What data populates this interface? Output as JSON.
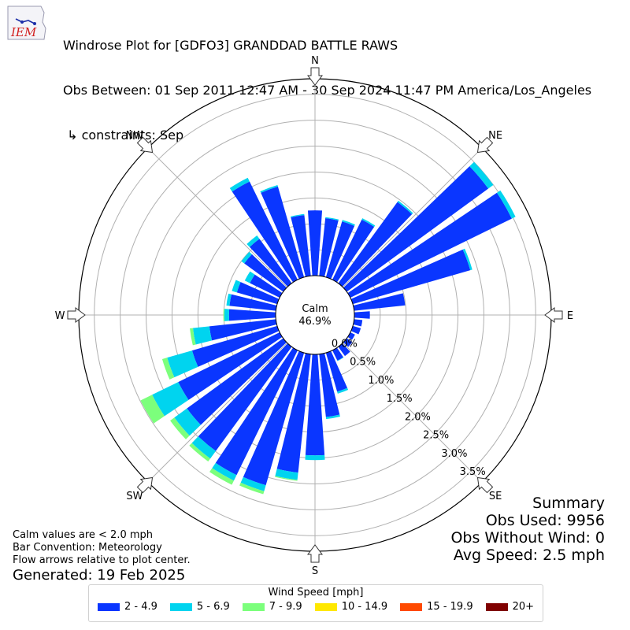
{
  "header": {
    "title": "Windrose Plot for [GDFO3] GRANDDAD BATTLE RAWS",
    "subtitle": "Obs Between: 01 Sep 2011 12:47 AM - 30 Sep 2024 11:47 PM America/Los_Angeles",
    "constraints": " ↳ constraints: Sep"
  },
  "logo": {
    "text": "IEM"
  },
  "chart_data": {
    "type": "windrose",
    "calm_label": "Calm",
    "calm_value": "46.9%",
    "directions": [
      "N",
      "NE",
      "E",
      "SE",
      "S",
      "SW",
      "W",
      "NW"
    ],
    "radial_ticks": [
      "0.0%",
      "0.5%",
      "1.0%",
      "1.5%",
      "2.0%",
      "2.5%",
      "3.0%",
      "3.5%"
    ],
    "radial_tick_values": [
      0,
      0.5,
      1.0,
      1.5,
      2.0,
      2.5,
      3.0,
      3.5
    ],
    "rmax": 3.8,
    "bin_width_deg": 10,
    "series": [
      {
        "name": "2 - 4.9",
        "color": "#0a36ff"
      },
      {
        "name": "5 - 6.9",
        "color": "#00d4ef"
      },
      {
        "name": "7 - 9.9",
        "color": "#7cff7c"
      },
      {
        "name": "10 - 14.9",
        "color": "#ffe800"
      },
      {
        "name": "15 - 19.9",
        "color": "#ff4a00"
      },
      {
        "name": "20+",
        "color": "#800000"
      }
    ],
    "bins": [
      {
        "dir": 0,
        "values": [
          1.26,
          0.0,
          0.0
        ]
      },
      {
        "dir": 10,
        "values": [
          1.12,
          0.02,
          0.0
        ]
      },
      {
        "dir": 20,
        "values": [
          1.12,
          0.03,
          0.0
        ]
      },
      {
        "dir": 30,
        "values": [
          1.29,
          0.03,
          0.0
        ]
      },
      {
        "dir": 40,
        "values": [
          1.94,
          0.03,
          0.0
        ]
      },
      {
        "dir": 50,
        "values": [
          3.38,
          0.12,
          0.0
        ]
      },
      {
        "dir": 60,
        "values": [
          3.47,
          0.08,
          0.0
        ]
      },
      {
        "dir": 70,
        "values": [
          2.36,
          0.04,
          0.0
        ]
      },
      {
        "dir": 80,
        "values": [
          0.99,
          0.0,
          0.0
        ]
      },
      {
        "dir": 90,
        "values": [
          0.3,
          0.0,
          0.0
        ]
      },
      {
        "dir": 100,
        "values": [
          0.16,
          0.0,
          0.0
        ]
      },
      {
        "dir": 110,
        "values": [
          0.16,
          0.0,
          0.0
        ]
      },
      {
        "dir": 120,
        "values": [
          0.1,
          0.0,
          0.0
        ]
      },
      {
        "dir": 130,
        "values": [
          0.13,
          0.0,
          0.0
        ]
      },
      {
        "dir": 140,
        "values": [
          0.22,
          0.0,
          0.0
        ]
      },
      {
        "dir": 150,
        "values": [
          0.22,
          0.01,
          0.0
        ]
      },
      {
        "dir": 160,
        "values": [
          0.78,
          0.04,
          0.0
        ]
      },
      {
        "dir": 170,
        "values": [
          1.22,
          0.04,
          0.0
        ]
      },
      {
        "dir": 180,
        "values": [
          1.95,
          0.09,
          0.0
        ]
      },
      {
        "dir": 190,
        "values": [
          2.3,
          0.14,
          0.02
        ]
      },
      {
        "dir": 200,
        "values": [
          2.66,
          0.12,
          0.06
        ]
      },
      {
        "dir": 210,
        "values": [
          2.68,
          0.12,
          0.09
        ]
      },
      {
        "dir": 220,
        "values": [
          2.49,
          0.18,
          0.07
        ]
      },
      {
        "dir": 230,
        "values": [
          2.3,
          0.3,
          0.1
        ]
      },
      {
        "dir": 240,
        "values": [
          2.18,
          0.56,
          0.25
        ]
      },
      {
        "dir": 250,
        "values": [
          1.71,
          0.5,
          0.1
        ]
      },
      {
        "dir": 260,
        "values": [
          1.29,
          0.32,
          0.06
        ]
      },
      {
        "dir": 270,
        "values": [
          0.9,
          0.09,
          0.02
        ]
      },
      {
        "dir": 280,
        "values": [
          0.9,
          0.06,
          0.0
        ]
      },
      {
        "dir": 290,
        "values": [
          0.81,
          0.1,
          0.0
        ]
      },
      {
        "dir": 300,
        "values": [
          0.64,
          0.11,
          0.0
        ]
      },
      {
        "dir": 310,
        "values": [
          0.93,
          0.07,
          0.0
        ]
      },
      {
        "dir": 320,
        "values": [
          1.06,
          0.08,
          0.0
        ]
      },
      {
        "dir": 330,
        "values": [
          2.11,
          0.08,
          0.0
        ]
      },
      {
        "dir": 340,
        "values": [
          1.82,
          0.03,
          0.0
        ]
      },
      {
        "dir": 350,
        "values": [
          1.18,
          0.02,
          0.0
        ]
      }
    ]
  },
  "notes": {
    "calm": "Calm values are < 2.0 mph",
    "bar_convention": "Bar Convention: Meteorology",
    "flow_arrows": "Flow arrows relative to plot center.",
    "generated": "Generated: 19 Feb 2025"
  },
  "summary": {
    "title": "Summary",
    "obs_used": "Obs Used: 9956",
    "obs_without_wind": "Obs Without Wind: 0",
    "avg_speed": "Avg Speed: 2.5 mph"
  },
  "legend": {
    "title": "Wind Speed [mph]",
    "items": [
      {
        "label": "2 - 4.9",
        "color": "#0a36ff"
      },
      {
        "label": "5 - 6.9",
        "color": "#00d4ef"
      },
      {
        "label": "7 - 9.9",
        "color": "#7cff7c"
      },
      {
        "label": "10 - 14.9",
        "color": "#ffe800"
      },
      {
        "label": "15 - 19.9",
        "color": "#ff4a00"
      },
      {
        "label": "20+",
        "color": "#800000"
      }
    ]
  }
}
